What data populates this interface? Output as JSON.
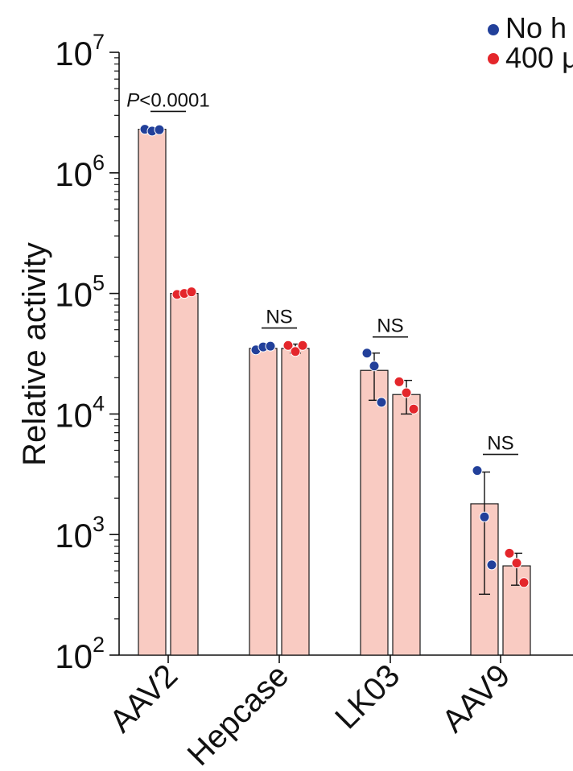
{
  "chart_data": {
    "type": "bar",
    "categories": [
      "AAV2",
      "Hepcase",
      "LK03",
      "AAV9"
    ],
    "yscale": "log",
    "ylim": [
      100,
      10000000
    ],
    "ylabel": "Relative activity",
    "yticks": [
      {
        "value": 100,
        "label": "10",
        "exp": "2"
      },
      {
        "value": 1000,
        "label": "10",
        "exp": "3"
      },
      {
        "value": 10000,
        "label": "10",
        "exp": "4"
      },
      {
        "value": 100000,
        "label": "10",
        "exp": "5"
      },
      {
        "value": 1000000,
        "label": "10",
        "exp": "6"
      },
      {
        "value": 10000000,
        "label": "10",
        "exp": "7"
      }
    ],
    "legend": {
      "position": "top-right",
      "entries": [
        "No h",
        "400 μ"
      ]
    },
    "colors": {
      "bar": "#f9cbc2",
      "series1_dot": "#22409a",
      "series2_dot": "#e4262b"
    },
    "series": [
      {
        "name": "No h",
        "values": [
          2300000,
          35000,
          23000,
          1800
        ],
        "err_low": [
          2250000,
          34000,
          13000,
          320
        ],
        "err_high": [
          2380000,
          36500,
          32000,
          3300
        ],
        "points": [
          [
            2300000,
            2220000,
            2280000
          ],
          [
            34000,
            36000,
            36500
          ],
          [
            32000,
            25000,
            12500
          ],
          [
            3400,
            1400,
            560
          ]
        ]
      },
      {
        "name": "400 μ",
        "values": [
          100000,
          35000,
          14500,
          550
        ],
        "err_low": [
          97000,
          32000,
          10000,
          380
        ],
        "err_high": [
          104000,
          38000,
          19000,
          700
        ],
        "points": [
          [
            98000,
            100000,
            103000
          ],
          [
            37000,
            33000,
            37000
          ],
          [
            18500,
            15000,
            11000
          ],
          [
            700,
            580,
            400
          ]
        ]
      }
    ],
    "annotations": [
      {
        "category": 0,
        "text_italic": "P",
        "text": "<0.0001"
      },
      {
        "category": 1,
        "text_italic": "",
        "text": "NS"
      },
      {
        "category": 2,
        "text_italic": "",
        "text": "NS"
      },
      {
        "category": 3,
        "text_italic": "",
        "text": "NS"
      }
    ]
  }
}
